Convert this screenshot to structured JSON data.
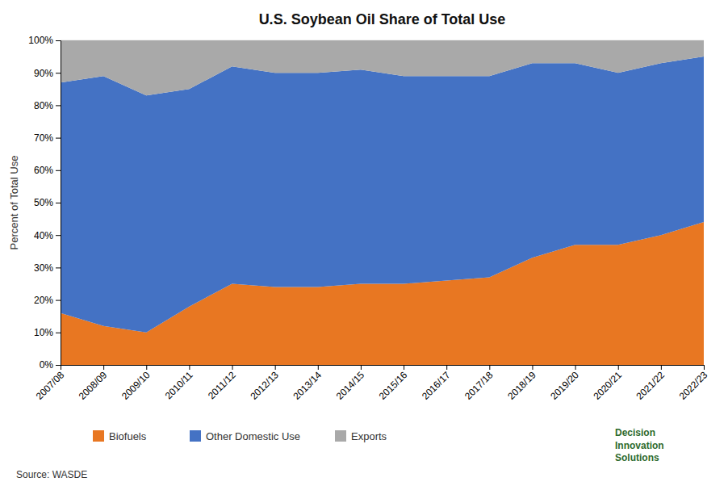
{
  "chart_data": {
    "type": "area",
    "stacked": true,
    "title": "U.S. Soybean Oil Share of Total Use",
    "y_label": "Percent of Total Use",
    "categories": [
      "2007/08",
      "2008/09",
      "2009/10",
      "2010/11",
      "2011/12",
      "2012/13",
      "2013/14",
      "2014/15",
      "2015/16",
      "2016/17",
      "2017/18",
      "2018/19",
      "2019/20",
      "2020/21",
      "2021/22",
      "2022/23"
    ],
    "series": [
      {
        "name": "Biofuels",
        "color": "#E87722",
        "values": [
          16,
          12,
          10,
          18,
          25,
          24,
          24,
          25,
          25,
          26,
          27,
          33,
          37,
          37,
          40,
          44
        ]
      },
      {
        "name": "Other Domestic Use",
        "color": "#4472C4",
        "values": [
          71,
          77,
          73,
          67,
          67,
          66,
          66,
          66,
          64,
          63,
          62,
          60,
          56,
          53,
          53,
          51
        ]
      },
      {
        "name": "Exports",
        "color": "#A9A9A9",
        "values": [
          13,
          11,
          17,
          15,
          8,
          10,
          10,
          9,
          11,
          11,
          11,
          7,
          7,
          10,
          7,
          5
        ]
      }
    ],
    "ylim": [
      0,
      100
    ],
    "yticks": [
      {
        "value": 0,
        "label": "0%"
      },
      {
        "value": 10,
        "label": "10%"
      },
      {
        "value": 20,
        "label": "20%"
      },
      {
        "value": 30,
        "label": "30%"
      },
      {
        "value": 40,
        "label": "40%"
      },
      {
        "value": 50,
        "label": "50%"
      },
      {
        "value": 60,
        "label": "60%"
      },
      {
        "value": 70,
        "label": "70%"
      },
      {
        "value": 80,
        "label": "80%"
      },
      {
        "value": 90,
        "label": "90%"
      },
      {
        "value": 100,
        "label": "100%"
      }
    ],
    "grid": true,
    "legend": "bottom",
    "annotations": [
      "Source: WASDE",
      "Decision\nInnovation\nSolutions"
    ]
  }
}
